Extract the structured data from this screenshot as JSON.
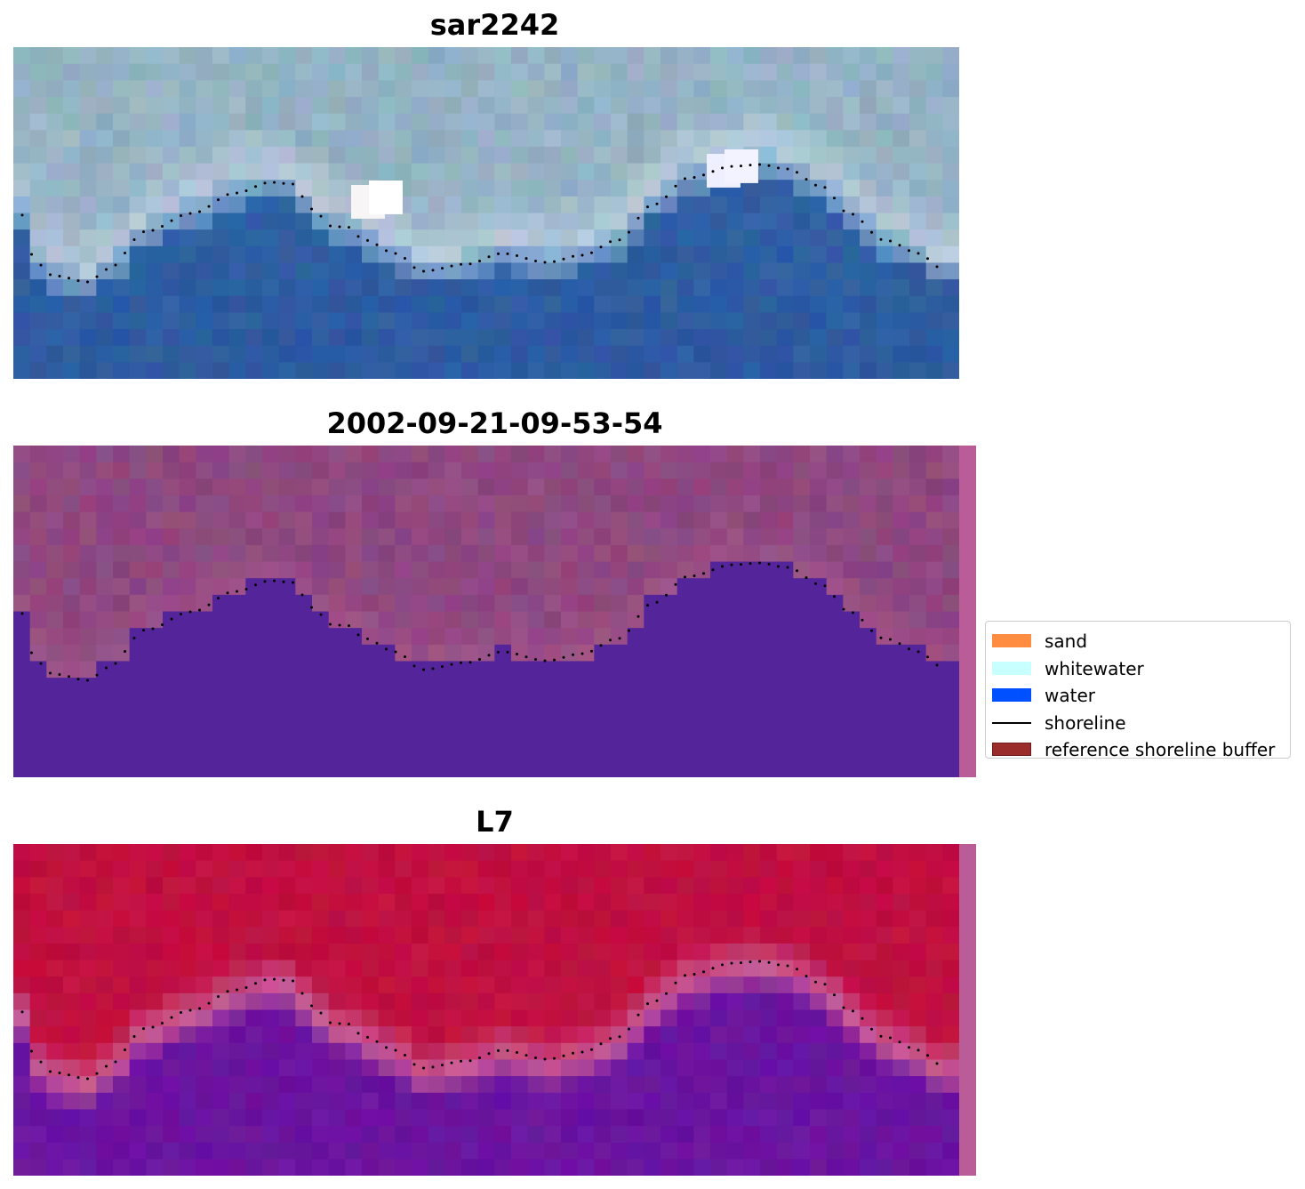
{
  "panels": [
    {
      "title": "sar2242",
      "kind": "rgb"
    },
    {
      "title": "2002-09-21-09-53-54",
      "kind": "classified"
    },
    {
      "title": "L7",
      "kind": "index"
    }
  ],
  "legend": {
    "items": [
      {
        "label": "sand",
        "color": "#ff8c40",
        "type": "patch"
      },
      {
        "label": "whitewater",
        "color": "#c8ffff",
        "type": "patch"
      },
      {
        "label": "water",
        "color": "#0050ff",
        "type": "patch"
      },
      {
        "label": "shoreline",
        "color": "#000000",
        "type": "line"
      },
      {
        "label": "reference shoreline buffer",
        "color": "#9b2c2c",
        "type": "patch"
      }
    ]
  },
  "colors": {
    "classified_water": "#54249a",
    "classified_land": "#8e4880",
    "index_land": "#c01040",
    "index_water": "#6a14a0",
    "buffer_strip": "#b95c98",
    "shoreline_dots": "#000000"
  }
}
